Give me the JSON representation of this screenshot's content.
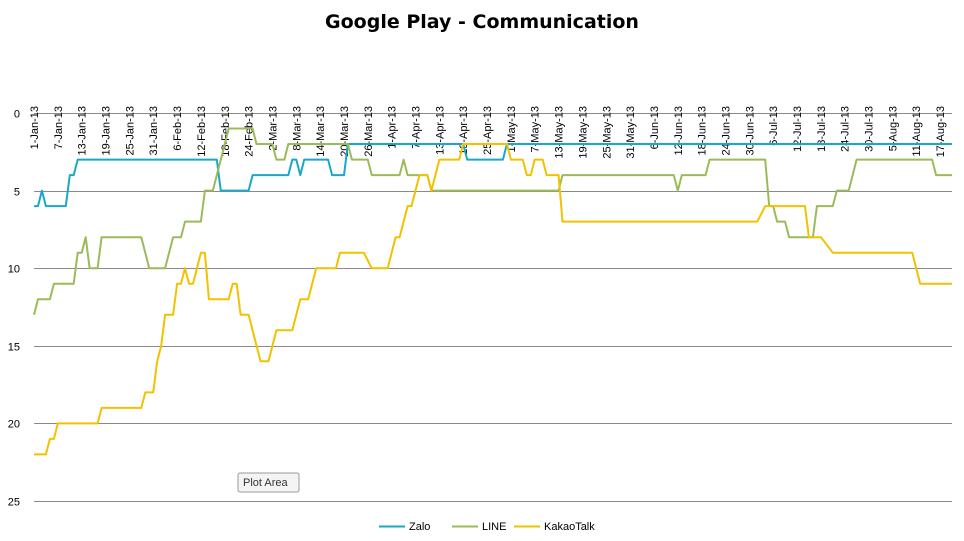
{
  "chart_data": {
    "type": "line",
    "title": "Google Play - Communication",
    "xlabel": "",
    "ylabel": "",
    "y_reversed": true,
    "ylim": [
      0,
      25
    ],
    "y_ticks": [
      0,
      5,
      10,
      15,
      20,
      25
    ],
    "x_range": [
      "1-Jan-13",
      "20-Aug-13"
    ],
    "x_tick_labels": [
      "1-Jan-13",
      "7-Jan-13",
      "13-Jan-13",
      "19-Jan-13",
      "25-Jan-13",
      "31-Jan-13",
      "6-Feb-13",
      "12-Feb-13",
      "18-Feb-13",
      "24-Feb-13",
      "2-Mar-13",
      "8-Mar-13",
      "14-Mar-13",
      "20-Mar-13",
      "26-Mar-13",
      "1-Apr-13",
      "7-Apr-13",
      "13-Apr-13",
      "19-Apr-13",
      "25-Apr-13",
      "1-May-13",
      "7-May-13",
      "13-May-13",
      "19-May-13",
      "25-May-13",
      "31-May-13",
      "6-Jun-13",
      "12-Jun-13",
      "18-Jun-13",
      "24-Jun-13",
      "30-Jun-13",
      "6-Jul-13",
      "12-Jul-13",
      "18-Jul-13",
      "24-Jul-13",
      "30-Jul-13",
      "5-Aug-13",
      "11-Aug-13",
      "17-Aug-13"
    ],
    "grid": "horizontal",
    "legend_position": "bottom",
    "tooltip": "Plot Area",
    "series": [
      {
        "name": "Zalo",
        "color": "#1aa7c8",
        "points": [
          [
            "1-Jan-13",
            6
          ],
          [
            "2-Jan-13",
            6
          ],
          [
            "3-Jan-13",
            5
          ],
          [
            "4-Jan-13",
            6
          ],
          [
            "9-Jan-13",
            6
          ],
          [
            "10-Jan-13",
            4
          ],
          [
            "11-Jan-13",
            4
          ],
          [
            "12-Jan-13",
            3
          ],
          [
            "16-Feb-13",
            3
          ],
          [
            "17-Feb-13",
            5
          ],
          [
            "24-Feb-13",
            5
          ],
          [
            "25-Feb-13",
            4
          ],
          [
            "6-Mar-13",
            4
          ],
          [
            "7-Mar-13",
            3
          ],
          [
            "8-Mar-13",
            3
          ],
          [
            "9-Mar-13",
            4
          ],
          [
            "10-Mar-13",
            3
          ],
          [
            "16-Mar-13",
            3
          ],
          [
            "17-Mar-13",
            4
          ],
          [
            "20-Mar-13",
            4
          ],
          [
            "21-Mar-13",
            2
          ],
          [
            "19-Apr-13",
            2
          ],
          [
            "20-Apr-13",
            3
          ],
          [
            "29-Apr-13",
            3
          ],
          [
            "30-Apr-13",
            2
          ],
          [
            "20-Aug-13",
            2
          ]
        ]
      },
      {
        "name": "LINE",
        "color": "#9bbb59",
        "points": [
          [
            "1-Jan-13",
            13
          ],
          [
            "2-Jan-13",
            12
          ],
          [
            "5-Jan-13",
            12
          ],
          [
            "6-Jan-13",
            11
          ],
          [
            "9-Jan-13",
            11
          ],
          [
            "10-Jan-13",
            11
          ],
          [
            "11-Jan-13",
            11
          ],
          [
            "12-Jan-13",
            9
          ],
          [
            "13-Jan-13",
            9
          ],
          [
            "14-Jan-13",
            8
          ],
          [
            "15-Jan-13",
            10
          ],
          [
            "17-Jan-13",
            10
          ],
          [
            "18-Jan-13",
            8
          ],
          [
            "28-Jan-13",
            8
          ],
          [
            "30-Jan-13",
            10
          ],
          [
            "3-Feb-13",
            10
          ],
          [
            "5-Feb-13",
            8
          ],
          [
            "7-Feb-13",
            8
          ],
          [
            "8-Feb-13",
            7
          ],
          [
            "12-Feb-13",
            7
          ],
          [
            "13-Feb-13",
            5
          ],
          [
            "15-Feb-13",
            5
          ],
          [
            "17-Feb-13",
            3
          ],
          [
            "19-Feb-13",
            1
          ],
          [
            "25-Feb-13",
            1
          ],
          [
            "26-Feb-13",
            2
          ],
          [
            "2-Mar-13",
            2
          ],
          [
            "3-Mar-13",
            3
          ],
          [
            "5-Mar-13",
            3
          ],
          [
            "6-Mar-13",
            2
          ],
          [
            "21-Mar-13",
            2
          ],
          [
            "22-Mar-13",
            3
          ],
          [
            "26-Mar-13",
            3
          ],
          [
            "27-Mar-13",
            4
          ],
          [
            "3-Apr-13",
            4
          ],
          [
            "4-Apr-13",
            3
          ],
          [
            "5-Apr-13",
            4
          ],
          [
            "10-Apr-13",
            4
          ],
          [
            "11-Apr-13",
            5
          ],
          [
            "13-May-13",
            5
          ],
          [
            "14-May-13",
            4
          ],
          [
            "11-Jun-13",
            4
          ],
          [
            "12-Jun-13",
            5
          ],
          [
            "13-Jun-13",
            4
          ],
          [
            "19-Jun-13",
            4
          ],
          [
            "20-Jun-13",
            3
          ],
          [
            "4-Jul-13",
            3
          ],
          [
            "5-Jul-13",
            6
          ],
          [
            "6-Jul-13",
            6
          ],
          [
            "7-Jul-13",
            7
          ],
          [
            "9-Jul-13",
            7
          ],
          [
            "10-Jul-13",
            8
          ],
          [
            "16-Jul-13",
            8
          ],
          [
            "17-Jul-13",
            6
          ],
          [
            "21-Jul-13",
            6
          ],
          [
            "22-Jul-13",
            5
          ],
          [
            "25-Jul-13",
            5
          ],
          [
            "27-Jul-13",
            3
          ],
          [
            "15-Aug-13",
            3
          ],
          [
            "16-Aug-13",
            4
          ],
          [
            "20-Aug-13",
            4
          ]
        ]
      },
      {
        "name": "KakaoTalk",
        "color": "#f2c200",
        "points": [
          [
            "1-Jan-13",
            22
          ],
          [
            "4-Jan-13",
            22
          ],
          [
            "5-Jan-13",
            21
          ],
          [
            "6-Jan-13",
            21
          ],
          [
            "7-Jan-13",
            20
          ],
          [
            "17-Jan-13",
            20
          ],
          [
            "18-Jan-13",
            19
          ],
          [
            "28-Jan-13",
            19
          ],
          [
            "29-Jan-13",
            18
          ],
          [
            "31-Jan-13",
            18
          ],
          [
            "1-Feb-13",
            16
          ],
          [
            "2-Feb-13",
            15
          ],
          [
            "3-Feb-13",
            13
          ],
          [
            "5-Feb-13",
            13
          ],
          [
            "6-Feb-13",
            11
          ],
          [
            "7-Feb-13",
            11
          ],
          [
            "8-Feb-13",
            10
          ],
          [
            "9-Feb-13",
            11
          ],
          [
            "10-Feb-13",
            11
          ],
          [
            "12-Feb-13",
            9
          ],
          [
            "13-Feb-13",
            9
          ],
          [
            "14-Feb-13",
            12
          ],
          [
            "19-Feb-13",
            12
          ],
          [
            "20-Feb-13",
            11
          ],
          [
            "21-Feb-13",
            11
          ],
          [
            "22-Feb-13",
            13
          ],
          [
            "24-Feb-13",
            13
          ],
          [
            "27-Feb-13",
            16
          ],
          [
            "1-Mar-13",
            16
          ],
          [
            "3-Mar-13",
            14
          ],
          [
            "7-Mar-13",
            14
          ],
          [
            "9-Mar-13",
            12
          ],
          [
            "11-Mar-13",
            12
          ],
          [
            "13-Mar-13",
            10
          ],
          [
            "18-Mar-13",
            10
          ],
          [
            "19-Mar-13",
            9
          ],
          [
            "25-Mar-13",
            9
          ],
          [
            "27-Mar-13",
            10
          ],
          [
            "31-Mar-13",
            10
          ],
          [
            "2-Apr-13",
            8
          ],
          [
            "3-Apr-13",
            8
          ],
          [
            "5-Apr-13",
            6
          ],
          [
            "6-Apr-13",
            6
          ],
          [
            "8-Apr-13",
            4
          ],
          [
            "10-Apr-13",
            4
          ],
          [
            "11-Apr-13",
            5
          ],
          [
            "12-Apr-13",
            4
          ],
          [
            "13-Apr-13",
            3
          ],
          [
            "18-Apr-13",
            3
          ],
          [
            "19-Apr-13",
            2
          ],
          [
            "30-Apr-13",
            2
          ],
          [
            "1-May-13",
            3
          ],
          [
            "4-May-13",
            3
          ],
          [
            "5-May-13",
            4
          ],
          [
            "6-May-13",
            4
          ],
          [
            "7-May-13",
            3
          ],
          [
            "9-May-13",
            3
          ],
          [
            "10-May-13",
            4
          ],
          [
            "13-May-13",
            4
          ],
          [
            "14-May-13",
            7
          ],
          [
            "2-Jul-13",
            7
          ],
          [
            "4-Jul-13",
            6
          ],
          [
            "14-Jul-13",
            6
          ],
          [
            "15-Jul-13",
            8
          ],
          [
            "18-Jul-13",
            8
          ],
          [
            "21-Jul-13",
            9
          ],
          [
            "10-Aug-13",
            9
          ],
          [
            "11-Aug-13",
            10
          ],
          [
            "12-Aug-13",
            11
          ],
          [
            "20-Aug-13",
            11
          ]
        ]
      }
    ]
  }
}
